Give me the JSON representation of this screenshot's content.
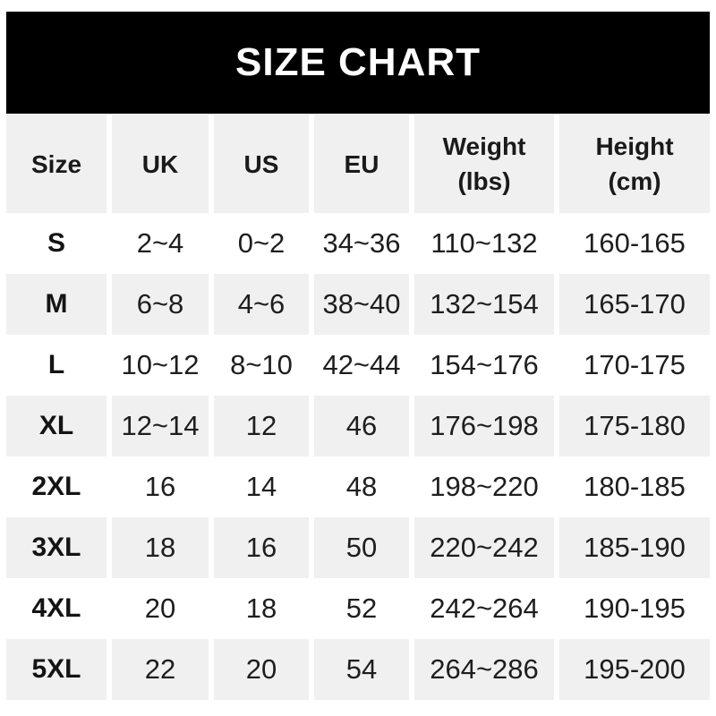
{
  "chart_data": {
    "type": "table",
    "title": "SIZE CHART",
    "columns": [
      "Size",
      "UK",
      "US",
      "EU",
      "Weight (lbs)",
      "Height (cm)"
    ],
    "rows": [
      [
        "S",
        "2~4",
        "0~2",
        "34~36",
        "110~132",
        "160-165"
      ],
      [
        "M",
        "6~8",
        "4~6",
        "38~40",
        "132~154",
        "165-170"
      ],
      [
        "L",
        "10~12",
        "8~10",
        "42~44",
        "154~176",
        "170-175"
      ],
      [
        "XL",
        "12~14",
        "12",
        "46",
        "176~198",
        "175-180"
      ],
      [
        "2XL",
        "16",
        "14",
        "48",
        "198~220",
        "180-185"
      ],
      [
        "3XL",
        "18",
        "16",
        "50",
        "220~242",
        "185-190"
      ],
      [
        "4XL",
        "20",
        "18",
        "52",
        "242~264",
        "190-195"
      ],
      [
        "5XL",
        "22",
        "20",
        "54",
        "264~286",
        "195-200"
      ]
    ],
    "layout": {
      "striped_rows": true,
      "header_position": "top",
      "grid": "column-gaps-only"
    }
  },
  "table": {
    "headers": [
      {
        "line1": "Size",
        "line2": ""
      },
      {
        "line1": "UK",
        "line2": ""
      },
      {
        "line1": "US",
        "line2": ""
      },
      {
        "line1": "EU",
        "line2": ""
      },
      {
        "line1": "Weight",
        "line2": "(lbs)"
      },
      {
        "line1": "Height",
        "line2": "(cm)"
      }
    ]
  },
  "colors": {
    "banner_bg": "#000000",
    "banner_text": "#ffffff",
    "stripe_bg": "#f0f0f0",
    "row_bg": "#ffffff",
    "text": "#1e1e1e"
  }
}
